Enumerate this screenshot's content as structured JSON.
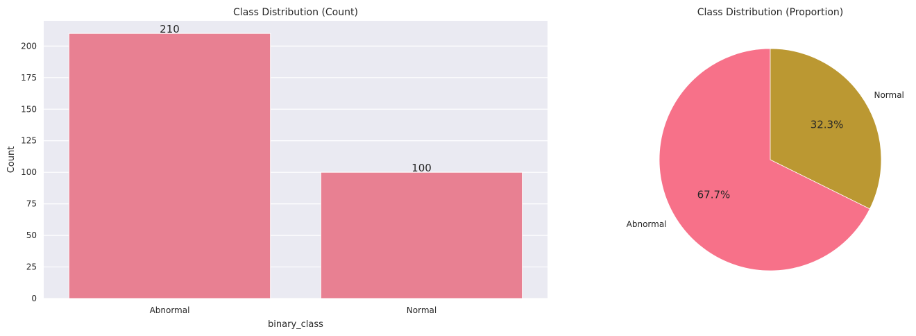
{
  "chart_data": [
    {
      "type": "bar",
      "title": "Class Distribution (Count)",
      "xlabel": "binary_class",
      "ylabel": "Count",
      "categories": [
        "Abnormal",
        "Normal"
      ],
      "values": [
        210,
        100
      ],
      "value_labels": [
        "210",
        "100"
      ],
      "ylim": [
        0,
        220
      ],
      "yticks": [
        0,
        25,
        50,
        75,
        100,
        125,
        150,
        175,
        200
      ],
      "ytick_labels": [
        "0",
        "25",
        "50",
        "75",
        "100",
        "125",
        "150",
        "175",
        "200"
      ],
      "grid": true,
      "bar_color": "#e88092",
      "background": "#eaeaf2"
    },
    {
      "type": "pie",
      "title": "Class Distribution (Proportion)",
      "labels": [
        "Abnormal",
        "Normal"
      ],
      "values": [
        67.7,
        32.3
      ],
      "pct_labels": [
        "67.7%",
        "32.3%"
      ],
      "colors": [
        "#f77189",
        "#bb9832"
      ],
      "start_angle": 90
    }
  ]
}
